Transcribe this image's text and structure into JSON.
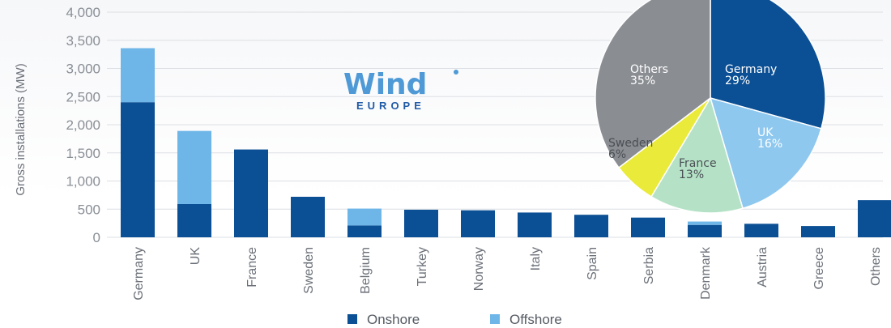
{
  "colors": {
    "onshore": "#0b4f94",
    "offshore": "#6fb6e8",
    "pie": {
      "Germany": "#0b4f94",
      "UK": "#8ec8ef",
      "France": "#b5e2c6",
      "Sweden": "#eaea3a",
      "Others": "#8a8d92"
    }
  },
  "logo": {
    "word": "Wind",
    "sub": "EUROPE"
  },
  "chart_data": [
    {
      "type": "bar",
      "stacked": true,
      "ylabel": "Gross installations (MW)",
      "ylim": [
        0,
        4000
      ],
      "yticks": [
        0,
        500,
        1000,
        1500,
        2000,
        2500,
        3000,
        3500,
        4000
      ],
      "ytick_labels": [
        "0",
        "500",
        "1,000",
        "1,500",
        "2,000",
        "2,500",
        "3,000",
        "3,500",
        "4,000"
      ],
      "grid": true,
      "legend_position": "bottom",
      "categories": [
        "Germany",
        "UK",
        "France",
        "Sweden",
        "Belgium",
        "Turkey",
        "Norway",
        "Italy",
        "Spain",
        "Serbia",
        "Denmark",
        "Austria",
        "Greece",
        "Others"
      ],
      "series": [
        {
          "name": "Onshore",
          "values": [
            2400,
            590,
            1560,
            720,
            210,
            490,
            480,
            440,
            400,
            350,
            220,
            240,
            200,
            660
          ]
        },
        {
          "name": "Offshore",
          "values": [
            960,
            1300,
            0,
            0,
            300,
            0,
            0,
            0,
            0,
            0,
            60,
            0,
            0,
            0
          ]
        }
      ]
    },
    {
      "type": "pie",
      "slices": [
        {
          "label": "Germany",
          "value": 29,
          "text": "29%"
        },
        {
          "label": "UK",
          "value": 16,
          "text": "16%"
        },
        {
          "label": "France",
          "value": 13,
          "text": "13%"
        },
        {
          "label": "Sweden",
          "value": 6,
          "text": "6%"
        },
        {
          "label": "Others",
          "value": 35,
          "text": "35%"
        }
      ]
    }
  ]
}
